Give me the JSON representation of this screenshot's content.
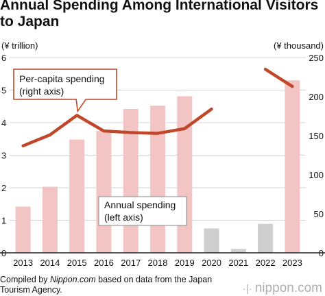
{
  "title_line1": "Annual Spending Among International Visitors",
  "title_line2": "to Japan",
  "source": {
    "prefix": "Compiled by ",
    "site": "Nippon.com",
    "suffix": " based on data from the Japan Tourism Agency."
  },
  "logo_text": "nippon.com",
  "chart_data": {
    "type": "bar+line",
    "categories": [
      "2013",
      "2014",
      "2015",
      "2016",
      "2017",
      "2018",
      "2019",
      "2020",
      "2021",
      "2022",
      "2023"
    ],
    "left_axis": {
      "unit": "(¥ trillion)",
      "range": [
        0,
        6
      ],
      "ticks": [
        "0",
        "1",
        "2",
        "3",
        "4",
        "5",
        "6"
      ]
    },
    "right_axis": {
      "unit": "(¥ thousand)",
      "range": [
        0,
        250
      ],
      "ticks": [
        "0",
        "50",
        "100",
        "150",
        "200",
        "250"
      ]
    },
    "series": [
      {
        "name": "Annual spending",
        "axis": "left",
        "type": "bar",
        "values": [
          1.42,
          2.03,
          3.48,
          3.75,
          4.42,
          4.52,
          4.81,
          0.75,
          0.12,
          0.89,
          5.3
        ],
        "colors": [
          "#f2c4c4",
          "#f2c4c4",
          "#f2c4c4",
          "#f2c4c4",
          "#f2c4c4",
          "#f2c4c4",
          "#f2c4c4",
          "#cfcfcf",
          "#cfcfcf",
          "#cfcfcf",
          "#f2c4c4"
        ]
      },
      {
        "name": "Per-capita spending",
        "axis": "right",
        "type": "line",
        "color": "#c0472a",
        "values": [
          137,
          151,
          176,
          156,
          154,
          153,
          159,
          184,
          null,
          235,
          213
        ]
      }
    ],
    "annotations": [
      {
        "line1": "Per-capita spending",
        "line2": "(right axis)"
      },
      {
        "line1": "Annual spending",
        "line2": "(left axis)"
      }
    ]
  }
}
